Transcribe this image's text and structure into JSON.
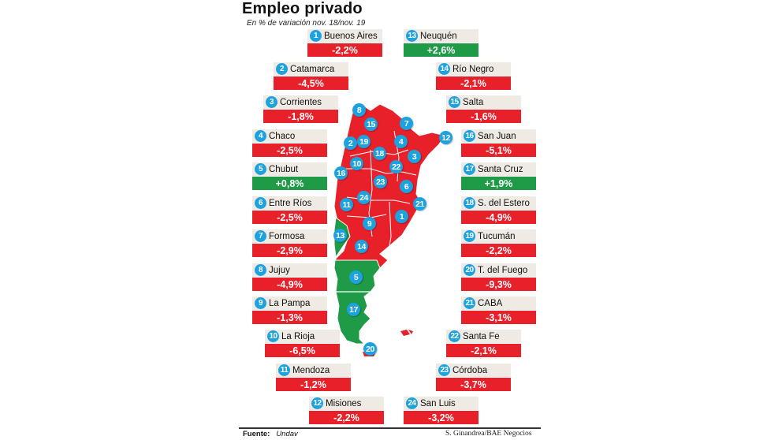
{
  "header": {
    "title": "Empleo privado",
    "subtitle": "En % de variación nov. 18/nov. 19"
  },
  "footer": {
    "source_label": "Fuente:",
    "source": "Undav",
    "credit": "S. Ginandrea/BAE Negocios"
  },
  "colors": {
    "negative": "#e8202a",
    "positive": "#1f9a47",
    "badge": "#1da2e0",
    "label_bg": "#efebe4"
  },
  "provinces": [
    {
      "n": "1",
      "name": "Buenos Aires",
      "value": "-2,2%"
    },
    {
      "n": "2",
      "name": "Catamarca",
      "value": "-4,5%"
    },
    {
      "n": "3",
      "name": "Corrientes",
      "value": "-1,8%"
    },
    {
      "n": "4",
      "name": "Chaco",
      "value": "-2,5%"
    },
    {
      "n": "5",
      "name": "Chubut",
      "value": "+0,8%"
    },
    {
      "n": "6",
      "name": "Entre Ríos",
      "value": "-2,5%"
    },
    {
      "n": "7",
      "name": "Formosa",
      "value": "-2,9%"
    },
    {
      "n": "8",
      "name": "Jujuy",
      "value": "-4,9%"
    },
    {
      "n": "9",
      "name": "La Pampa",
      "value": "-1,3%"
    },
    {
      "n": "10",
      "name": "La Rioja",
      "value": "-6,5%"
    },
    {
      "n": "11",
      "name": "Mendoza",
      "value": "-1,2%"
    },
    {
      "n": "12",
      "name": "Misiones",
      "value": "-2,2%"
    },
    {
      "n": "13",
      "name": "Neuquén",
      "value": "+2,6%"
    },
    {
      "n": "14",
      "name": "Río Negro",
      "value": "-2,1%"
    },
    {
      "n": "15",
      "name": "Salta",
      "value": "-1,6%"
    },
    {
      "n": "16",
      "name": "San Juan",
      "value": "-5,1%"
    },
    {
      "n": "17",
      "name": "Santa Cruz",
      "value": "+1,9%"
    },
    {
      "n": "18",
      "name": "S. del Estero",
      "value": "-4,9%"
    },
    {
      "n": "19",
      "name": "Tucumán",
      "value": "-2,2%"
    },
    {
      "n": "20",
      "name": "T. del Fuego",
      "value": "-9,3%"
    },
    {
      "n": "21",
      "name": "CABA",
      "value": "-3,1%"
    },
    {
      "n": "22",
      "name": "Santa Fe",
      "value": "-2,1%"
    },
    {
      "n": "23",
      "name": "Córdoba",
      "value": "-3,7%"
    },
    {
      "n": "24",
      "name": "San Luis",
      "value": "-3,2%"
    }
  ],
  "chart_data": {
    "type": "bar",
    "title": "Empleo privado",
    "subtitle": "En % de variación nov. 18/nov. 19",
    "categories": [
      "Buenos Aires",
      "Catamarca",
      "Corrientes",
      "Chaco",
      "Chubut",
      "Entre Ríos",
      "Formosa",
      "Jujuy",
      "La Pampa",
      "La Rioja",
      "Mendoza",
      "Misiones",
      "Neuquén",
      "Río Negro",
      "Salta",
      "San Juan",
      "Santa Cruz",
      "S. del Estero",
      "Tucumán",
      "T. del Fuego",
      "CABA",
      "Santa Fe",
      "Córdoba",
      "San Luis"
    ],
    "values": [
      -2.2,
      -4.5,
      -1.8,
      -2.5,
      0.8,
      -2.5,
      -2.9,
      -4.9,
      -1.3,
      -6.5,
      -1.2,
      -2.2,
      2.6,
      -2.1,
      -1.6,
      -5.1,
      1.9,
      -4.9,
      -2.2,
      -9.3,
      -3.1,
      -2.1,
      -3.7,
      -3.2
    ],
    "unit": "%",
    "encoding": "choropleth map of Argentina; green = positive, red = negative",
    "source": "Undav",
    "credit": "S. Ginandrea/BAE Negocios"
  }
}
